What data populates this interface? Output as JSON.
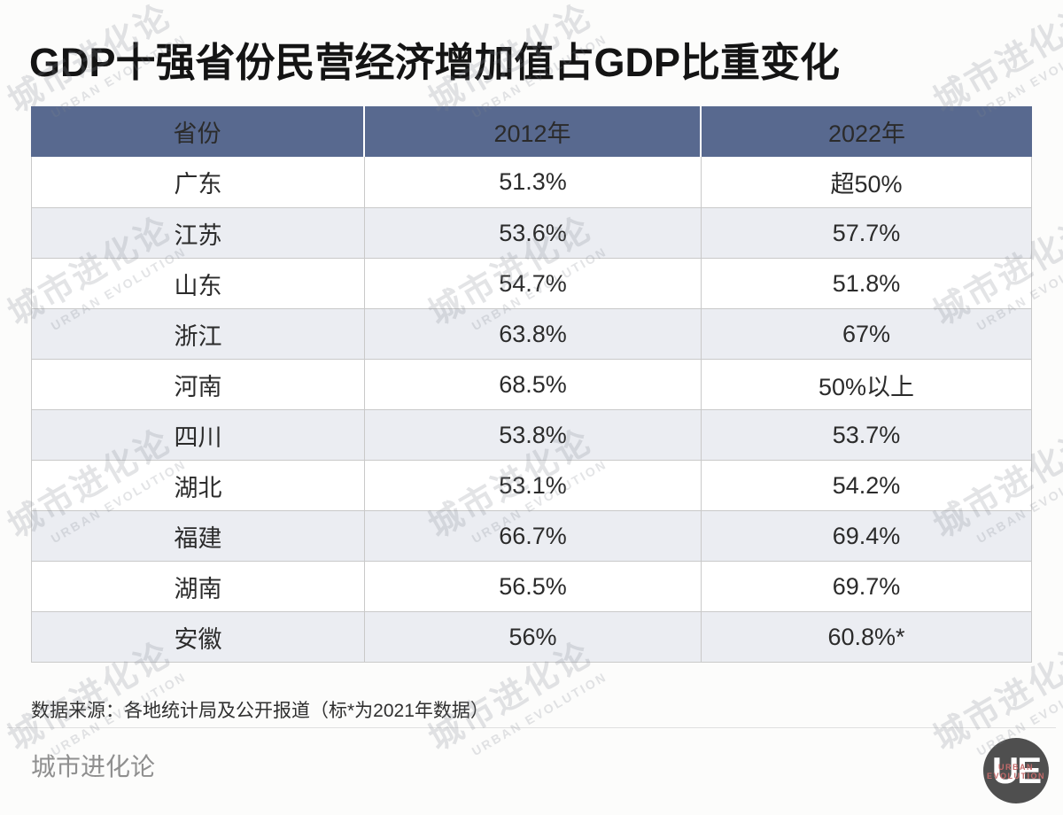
{
  "chart_data": {
    "type": "table",
    "title": "GDP十强省份民营经济增加值占GDP比重变化",
    "columns": [
      "省份",
      "2012年",
      "2022年"
    ],
    "rows": [
      [
        "广东",
        "51.3%",
        "超50%"
      ],
      [
        "江苏",
        "53.6%",
        "57.7%"
      ],
      [
        "山东",
        "54.7%",
        "51.8%"
      ],
      [
        "浙江",
        "63.8%",
        "67%"
      ],
      [
        "河南",
        "68.5%",
        "50%以上"
      ],
      [
        "四川",
        "53.8%",
        "53.7%"
      ],
      [
        "湖北",
        "53.1%",
        "54.2%"
      ],
      [
        "福建",
        "66.7%",
        "69.4%"
      ],
      [
        "湖南",
        "56.5%",
        "69.7%"
      ],
      [
        "安徽",
        "56%",
        "60.8%*"
      ]
    ],
    "source_note": "数据来源：各地统计局及公开报道（标*为2021年数据）"
  },
  "watermark": {
    "cn": "城市进化论",
    "en": "URBAN EVOLUTION"
  },
  "brand": {
    "name": "城市进化论",
    "logo_text": "UE",
    "logo_caption_line1": "URBAN",
    "logo_caption_line2": "EVOLUTION"
  },
  "colors": {
    "header_bg": "#58698f",
    "row_alt_bg": "#ebedf2",
    "logo_bg": "#4f4f4f",
    "logo_caption_red": "#c46b6b"
  }
}
